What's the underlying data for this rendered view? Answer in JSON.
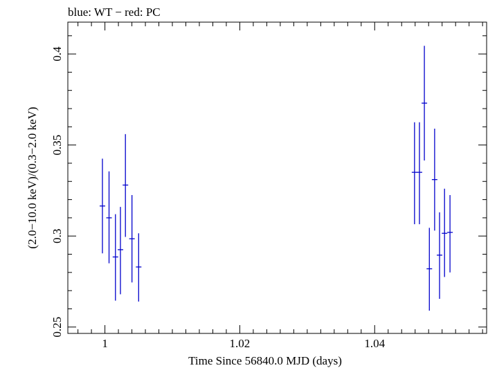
{
  "chart_data": {
    "type": "scatter",
    "title": "blue: WT − red: PC",
    "xlabel": "Time Since 56840.0 MJD (days)",
    "ylabel": "(2.0−10.0 keV)/(0.3−2.0 keV)",
    "xlim": [
      0.9945,
      1.0566
    ],
    "ylim": [
      0.2465,
      0.4175
    ],
    "x_ticks": [
      {
        "value": 1.0,
        "label": "1"
      },
      {
        "value": 1.02,
        "label": "1.02"
      },
      {
        "value": 1.04,
        "label": "1.04"
      }
    ],
    "y_ticks": [
      {
        "value": 0.25,
        "label": "0.25"
      },
      {
        "value": 0.3,
        "label": "0.3"
      },
      {
        "value": 0.35,
        "label": "0.35"
      },
      {
        "value": 0.4,
        "label": "0.4"
      }
    ],
    "series": [
      {
        "name": "WT",
        "color": "#0000cc",
        "points": [
          {
            "x": 0.99963,
            "y": 0.3165,
            "ylo": 0.2905,
            "yhi": 0.3425
          },
          {
            "x": 1.00061,
            "y": 0.31,
            "ylo": 0.285,
            "yhi": 0.3355
          },
          {
            "x": 1.00156,
            "y": 0.2885,
            "ylo": 0.2645,
            "yhi": 0.312
          },
          {
            "x": 1.0023,
            "y": 0.2925,
            "ylo": 0.268,
            "yhi": 0.316
          },
          {
            "x": 1.00304,
            "y": 0.328,
            "ylo": 0.2995,
            "yhi": 0.356
          },
          {
            "x": 1.00401,
            "y": 0.2985,
            "ylo": 0.2745,
            "yhi": 0.3225
          },
          {
            "x": 1.005,
            "y": 0.283,
            "ylo": 0.264,
            "yhi": 0.3015
          },
          {
            "x": 1.04591,
            "y": 0.335,
            "ylo": 0.3065,
            "yhi": 0.3625
          },
          {
            "x": 1.04664,
            "y": 0.335,
            "ylo": 0.3065,
            "yhi": 0.3625
          },
          {
            "x": 1.04737,
            "y": 0.373,
            "ylo": 0.3415,
            "yhi": 0.4045
          },
          {
            "x": 1.04811,
            "y": 0.282,
            "ylo": 0.259,
            "yhi": 0.3045
          },
          {
            "x": 1.04889,
            "y": 0.331,
            "ylo": 0.303,
            "yhi": 0.359
          },
          {
            "x": 1.04962,
            "y": 0.2895,
            "ylo": 0.2655,
            "yhi": 0.313
          },
          {
            "x": 1.05036,
            "y": 0.3015,
            "ylo": 0.2775,
            "yhi": 0.326
          },
          {
            "x": 1.05117,
            "y": 0.302,
            "ylo": 0.28,
            "yhi": 0.3225
          }
        ]
      }
    ],
    "grid": false,
    "legend": "none"
  }
}
